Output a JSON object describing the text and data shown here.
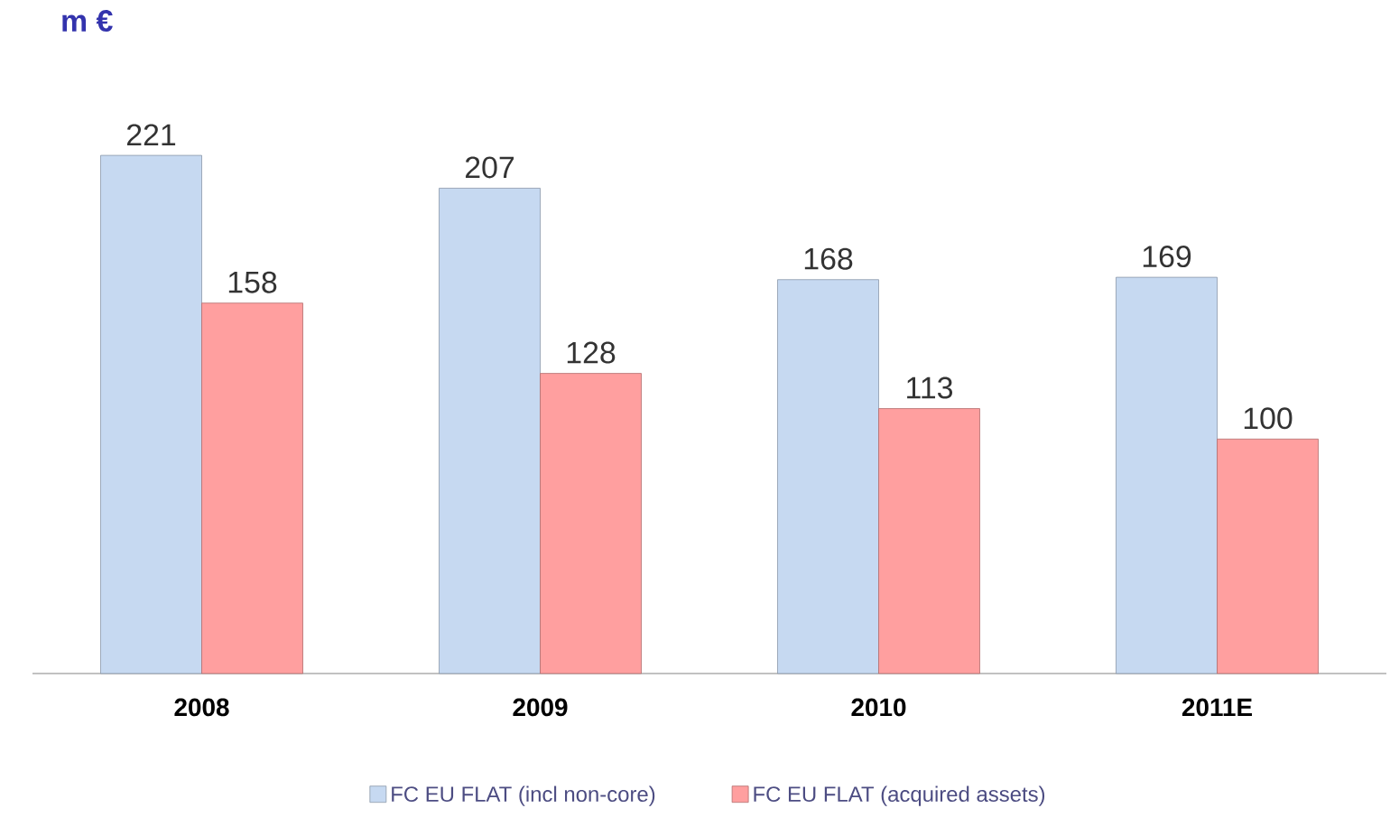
{
  "chart_data": {
    "type": "bar",
    "ylabel": "m €",
    "categories": [
      "2008",
      "2009",
      "2010",
      "2011E"
    ],
    "series": [
      {
        "name": "FC EU FLAT (incl non-core)",
        "color": "#c6d9f1",
        "values": [
          221,
          207,
          168,
          169
        ]
      },
      {
        "name": "FC EU FLAT (acquired assets)",
        "color": "#ff9f9f",
        "values": [
          158,
          128,
          113,
          100
        ]
      }
    ],
    "data_labels": true,
    "legend": "bottom"
  }
}
